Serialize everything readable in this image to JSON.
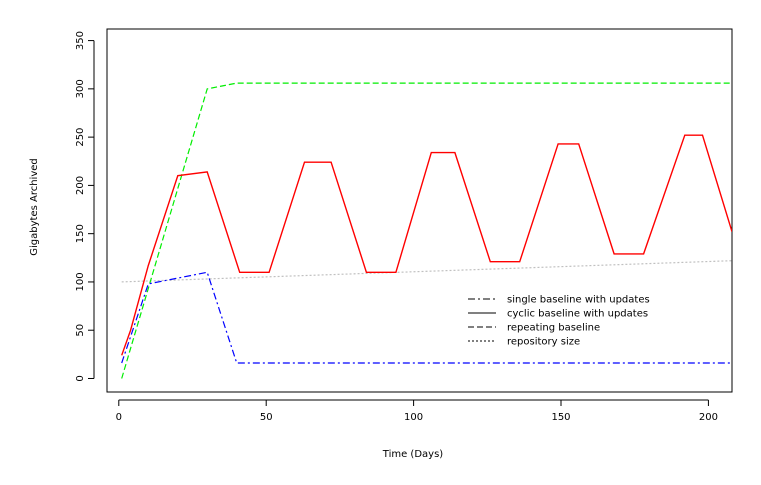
{
  "chart_data": {
    "type": "line",
    "title": "",
    "xlabel": "Time (Days)",
    "ylabel": "Gigabytes Archived",
    "xlim": [
      -4,
      208
    ],
    "ylim": [
      -14,
      362
    ],
    "xticks": [
      0,
      50,
      100,
      150,
      200
    ],
    "yticks": [
      0,
      50,
      100,
      150,
      200,
      250,
      300,
      350
    ],
    "grid": false,
    "legend_position": "center-right",
    "series": [
      {
        "name": "single baseline with updates",
        "color": "#0000ff",
        "dash": "dashdot",
        "points": [
          [
            1,
            16
          ],
          [
            10,
            98
          ],
          [
            30,
            110
          ],
          [
            40,
            16
          ],
          [
            208,
            16
          ]
        ]
      },
      {
        "name": "cyclic baseline with updates",
        "color": "#ff0000",
        "dash": "solid",
        "points": [
          [
            1,
            24
          ],
          [
            4,
            50
          ],
          [
            10,
            117
          ],
          [
            20,
            210
          ],
          [
            30,
            214
          ],
          [
            41,
            110
          ],
          [
            51,
            110
          ],
          [
            63,
            224
          ],
          [
            72,
            224
          ],
          [
            84,
            110
          ],
          [
            94,
            110
          ],
          [
            106,
            234
          ],
          [
            114,
            234
          ],
          [
            126,
            121
          ],
          [
            136,
            121
          ],
          [
            149,
            243
          ],
          [
            156,
            243
          ],
          [
            168,
            129
          ],
          [
            178,
            129
          ],
          [
            192,
            252
          ],
          [
            198,
            252
          ],
          [
            208,
            152
          ]
        ]
      },
      {
        "name": "repeating baseline",
        "color": "#00ee00",
        "dash": "dashed",
        "points": [
          [
            1,
            0
          ],
          [
            30,
            300
          ],
          [
            40,
            306
          ],
          [
            208,
            306
          ]
        ]
      },
      {
        "name": "repository size",
        "color": "#c0c0c0",
        "dash": "dotted",
        "points": [
          [
            1,
            100
          ],
          [
            208,
            122
          ]
        ]
      }
    ]
  }
}
